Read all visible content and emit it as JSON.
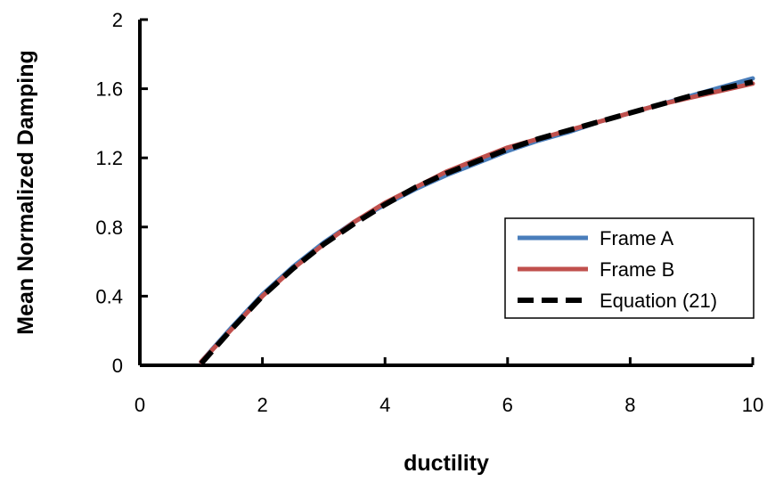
{
  "chart_data": {
    "type": "line",
    "xlabel": "ductility",
    "ylabel": "Mean Normalized  Damping",
    "xlim": [
      0,
      10
    ],
    "ylim": [
      0,
      2
    ],
    "xticks": [
      "0",
      "2",
      "4",
      "6",
      "8",
      "10"
    ],
    "yticks": [
      "0",
      "0.4",
      "0.8",
      "1.2",
      "1.6",
      "2"
    ],
    "grid": false,
    "legend_position": "right",
    "series": [
      {
        "name": "Frame A",
        "color": "#4a7ebb",
        "style": "solid",
        "x": [
          1,
          1.5,
          2,
          2.5,
          3,
          3.5,
          4,
          4.5,
          5,
          5.5,
          6,
          6.5,
          7,
          7.5,
          8,
          8.5,
          9,
          9.5,
          10
        ],
        "y": [
          0.02,
          0.22,
          0.41,
          0.57,
          0.71,
          0.83,
          0.93,
          1.02,
          1.1,
          1.17,
          1.24,
          1.3,
          1.35,
          1.41,
          1.46,
          1.51,
          1.56,
          1.61,
          1.66
        ]
      },
      {
        "name": "Frame B",
        "color": "#c0504d",
        "style": "solid",
        "x": [
          1,
          1.5,
          2,
          2.5,
          3,
          3.5,
          4,
          4.5,
          5,
          5.5,
          6,
          6.5,
          7,
          7.5,
          8,
          8.5,
          9,
          9.5,
          10
        ],
        "y": [
          0.02,
          0.21,
          0.4,
          0.56,
          0.7,
          0.83,
          0.94,
          1.03,
          1.12,
          1.19,
          1.26,
          1.31,
          1.36,
          1.41,
          1.46,
          1.51,
          1.55,
          1.59,
          1.63
        ]
      },
      {
        "name": "Equation (21)",
        "color": "#000000",
        "style": "dashed",
        "x": [
          1,
          1.5,
          2,
          2.5,
          3,
          3.5,
          4,
          4.5,
          5,
          5.5,
          6,
          6.5,
          7,
          7.5,
          8,
          8.5,
          9,
          9.5,
          10
        ],
        "y": [
          0.01,
          0.21,
          0.4,
          0.56,
          0.7,
          0.82,
          0.93,
          1.03,
          1.11,
          1.18,
          1.25,
          1.31,
          1.36,
          1.41,
          1.46,
          1.51,
          1.56,
          1.6,
          1.64
        ]
      }
    ]
  }
}
